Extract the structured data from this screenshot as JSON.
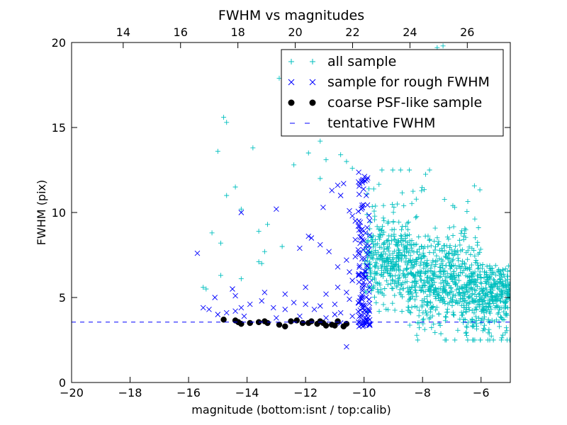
{
  "chart_data": {
    "type": "scatter",
    "title": "FWHM vs magnitudes",
    "xlabel": "magnitude (bottom:isnt / top:calib)",
    "ylabel": "FWHM (pix)",
    "xlim": [
      -20,
      -5
    ],
    "ylim": [
      0,
      20
    ],
    "top_xlim": [
      12.2,
      27.5
    ],
    "x_ticks": [
      -20,
      -18,
      -16,
      -14,
      -12,
      -10,
      -8,
      -6
    ],
    "x_tick_labels": [
      "−20",
      "−18",
      "−16",
      "−14",
      "−12",
      "−10",
      "−8",
      "−6"
    ],
    "top_x_ticks": [
      14,
      16,
      18,
      20,
      22,
      24,
      26
    ],
    "top_x_tick_labels": [
      "14",
      "16",
      "18",
      "20",
      "22",
      "24",
      "26"
    ],
    "y_ticks": [
      0,
      5,
      10,
      15,
      20
    ],
    "y_tick_labels": [
      "0",
      "5",
      "10",
      "15",
      "20"
    ],
    "grid": false,
    "legend_position": "top-right",
    "tentative_fwhm": 3.55,
    "colors": {
      "all_sample": "#00BFBF",
      "rough_sample": "#0000FF",
      "psf_sample": "#000000",
      "tentative_line": "#0000FF"
    },
    "series": [
      {
        "name": "all sample",
        "marker": "plus",
        "cloud": {
          "count": 1250,
          "x_range": [
            -10.0,
            -5.0
          ],
          "y_center": 5.8,
          "y_min": 2.5,
          "y_max": 12.5
        },
        "values": [
          [
            -7.3,
            19.8
          ],
          [
            -7.5,
            19.7
          ],
          [
            -12.9,
            17.9
          ],
          [
            -14.8,
            15.6
          ],
          [
            -14.7,
            15.3
          ],
          [
            -15.0,
            13.6
          ],
          [
            -13.8,
            13.8
          ],
          [
            -11.3,
            13.1
          ],
          [
            -12.4,
            12.8
          ],
          [
            -11.5,
            12.0
          ],
          [
            -14.4,
            11.5
          ],
          [
            -14.7,
            11.0
          ],
          [
            -14.2,
            10.2
          ],
          [
            -13.3,
            9.3
          ],
          [
            -13.6,
            8.9
          ],
          [
            -15.2,
            8.8
          ],
          [
            -14.9,
            8.2
          ],
          [
            -12.8,
            8.0
          ],
          [
            -13.4,
            7.7
          ],
          [
            -13.6,
            7.1
          ],
          [
            -13.5,
            7.0
          ],
          [
            -14.9,
            6.3
          ],
          [
            -14.2,
            6.1
          ],
          [
            -15.5,
            5.6
          ],
          [
            -15.4,
            5.5
          ],
          [
            -11.9,
            13.5
          ],
          [
            -11.5,
            14.2
          ],
          [
            -10.8,
            13.4
          ],
          [
            -10.6,
            13.0
          ],
          [
            -10.4,
            12.6
          ],
          [
            -6.9,
            10.3
          ],
          [
            -6.6,
            8.6
          ],
          [
            -5.8,
            6.2
          ],
          [
            -5.3,
            5.4
          ],
          [
            -5.1,
            5.2
          ],
          [
            -5.5,
            4.9
          ],
          [
            -5.9,
            4.8
          ],
          [
            -6.3,
            3.7
          ],
          [
            -6.0,
            3.5
          ],
          [
            -6.5,
            3.3
          ]
        ]
      },
      {
        "name": "sample for rough FWHM",
        "marker": "x",
        "values": [
          [
            -15.7,
            7.6
          ],
          [
            -14.2,
            10.0
          ],
          [
            -13.0,
            10.2
          ],
          [
            -11.9,
            8.6
          ],
          [
            -11.8,
            8.5
          ],
          [
            -12.2,
            7.9
          ],
          [
            -11.5,
            8.1
          ],
          [
            -11.2,
            7.7
          ],
          [
            -11.4,
            10.3
          ],
          [
            -11.1,
            11.3
          ],
          [
            -10.9,
            11.6
          ],
          [
            -10.7,
            11.7
          ],
          [
            -10.8,
            11.0
          ],
          [
            -10.5,
            10.1
          ],
          [
            -10.4,
            9.8
          ],
          [
            -10.3,
            9.5
          ],
          [
            -10.2,
            9.2
          ],
          [
            -10.1,
            8.8
          ],
          [
            -10.3,
            8.4
          ],
          [
            -10.2,
            7.8
          ],
          [
            -10.3,
            7.4
          ],
          [
            -10.6,
            7.2
          ],
          [
            -10.9,
            6.8
          ],
          [
            -10.9,
            5.6
          ],
          [
            -10.5,
            4.9
          ],
          [
            -11.0,
            4.6
          ],
          [
            -11.5,
            4.5
          ],
          [
            -12.0,
            4.6
          ],
          [
            -12.4,
            4.7
          ],
          [
            -12.7,
            4.3
          ],
          [
            -13.1,
            4.4
          ],
          [
            -13.5,
            4.8
          ],
          [
            -13.9,
            4.6
          ],
          [
            -14.2,
            4.4
          ],
          [
            -14.4,
            4.2
          ],
          [
            -14.7,
            4.1
          ],
          [
            -15.0,
            4.0
          ],
          [
            -15.3,
            4.3
          ],
          [
            -15.5,
            4.4
          ],
          [
            -15.1,
            5.0
          ],
          [
            -14.5,
            5.5
          ],
          [
            -13.4,
            5.3
          ],
          [
            -12.7,
            5.2
          ],
          [
            -12.0,
            5.6
          ],
          [
            -11.3,
            5.2
          ],
          [
            -10.6,
            5.3
          ],
          [
            -10.8,
            4.1
          ],
          [
            -11.3,
            3.8
          ],
          [
            -12.2,
            3.9
          ],
          [
            -13.0,
            3.8
          ],
          [
            -14.1,
            3.9
          ],
          [
            -14.4,
            5.1
          ],
          [
            -10.6,
            2.1
          ],
          [
            -10.8,
            3.5
          ],
          [
            -10.4,
            3.9
          ],
          [
            -11.0,
            4.0
          ],
          [
            -10.5,
            6.5
          ],
          [
            -10.2,
            6.3
          ],
          [
            -10.4,
            6.0
          ],
          [
            -11.7,
            4.3
          ]
        ],
        "column": {
          "x_range": [
            -10.2,
            -9.8
          ],
          "y_min": 3.3,
          "y_max": 12.4,
          "count": 120
        }
      },
      {
        "name": "coarse PSF-like sample",
        "marker": "circle",
        "values": [
          [
            -14.8,
            3.7
          ],
          [
            -14.3,
            3.55
          ],
          [
            -14.2,
            3.45
          ],
          [
            -13.9,
            3.5
          ],
          [
            -13.4,
            3.6
          ],
          [
            -13.3,
            3.5
          ],
          [
            -12.9,
            3.4
          ],
          [
            -12.7,
            3.3
          ],
          [
            -12.5,
            3.6
          ],
          [
            -12.3,
            3.65
          ],
          [
            -11.8,
            3.6
          ],
          [
            -11.6,
            3.45
          ],
          [
            -11.4,
            3.5
          ],
          [
            -11.3,
            3.35
          ],
          [
            -11.1,
            3.4
          ],
          [
            -11.0,
            3.35
          ],
          [
            -10.9,
            3.6
          ],
          [
            -10.7,
            3.3
          ],
          [
            -10.6,
            3.45
          ],
          [
            -11.9,
            3.5
          ],
          [
            -13.6,
            3.55
          ],
          [
            -14.4,
            3.65
          ],
          [
            -11.5,
            3.6
          ],
          [
            -12.1,
            3.5
          ]
        ]
      },
      {
        "name": "tentative FWHM",
        "marker": "dashed-line",
        "values": [
          [
            -20,
            3.55
          ],
          [
            -5,
            3.55
          ]
        ]
      }
    ]
  }
}
